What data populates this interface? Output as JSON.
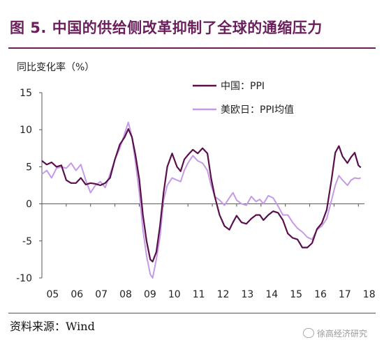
{
  "header": {
    "figure_title": "图 5. 中国的供给侧改革抑制了全球的通缩压力",
    "unit_label": "同比变化率（%）"
  },
  "footer": {
    "source": "资料来源：Wind",
    "watermark": "徐高经济研究"
  },
  "colors": {
    "china": "#5a0f4a",
    "us_eu_jp": "#c49ae6",
    "accent": "#6a1f5c"
  },
  "chart_data": {
    "type": "line",
    "title": "",
    "xlabel": "",
    "ylabel": "同比变化率（%）",
    "ylim": [
      -10,
      15
    ],
    "xlim": [
      2005.0,
      2018.25
    ],
    "yticks": [
      15,
      10,
      5,
      0,
      -5,
      -10
    ],
    "xticks": [
      "05",
      "06",
      "07",
      "08",
      "09",
      "10",
      "11",
      "12",
      "13",
      "14",
      "15",
      "16",
      "17",
      "18"
    ],
    "grid": false,
    "legend_position": "top-right",
    "series": [
      {
        "name": "中国：PPI",
        "points": [
          [
            2005.0,
            5.8
          ],
          [
            2005.2,
            5.3
          ],
          [
            2005.4,
            5.6
          ],
          [
            2005.6,
            5.0
          ],
          [
            2005.8,
            5.2
          ],
          [
            2006.0,
            3.2
          ],
          [
            2006.2,
            2.8
          ],
          [
            2006.4,
            2.8
          ],
          [
            2006.6,
            3.5
          ],
          [
            2006.8,
            2.6
          ],
          [
            2007.0,
            2.8
          ],
          [
            2007.2,
            2.7
          ],
          [
            2007.4,
            2.5
          ],
          [
            2007.6,
            2.8
          ],
          [
            2007.8,
            3.5
          ],
          [
            2008.0,
            6.0
          ],
          [
            2008.2,
            8.0
          ],
          [
            2008.4,
            9.0
          ],
          [
            2008.55,
            10.1
          ],
          [
            2008.7,
            9.0
          ],
          [
            2008.85,
            6.5
          ],
          [
            2009.0,
            3.3
          ],
          [
            2009.15,
            -1.5
          ],
          [
            2009.3,
            -5.0
          ],
          [
            2009.45,
            -7.5
          ],
          [
            2009.55,
            -7.8
          ],
          [
            2009.7,
            -6.5
          ],
          [
            2009.85,
            -3.0
          ],
          [
            2010.0,
            1.5
          ],
          [
            2010.15,
            5.0
          ],
          [
            2010.35,
            6.8
          ],
          [
            2010.55,
            5.0
          ],
          [
            2010.7,
            4.4
          ],
          [
            2010.85,
            6.0
          ],
          [
            2011.0,
            6.6
          ],
          [
            2011.2,
            7.3
          ],
          [
            2011.4,
            6.8
          ],
          [
            2011.6,
            7.5
          ],
          [
            2011.8,
            6.8
          ],
          [
            2011.95,
            3.5
          ],
          [
            2012.1,
            1.0
          ],
          [
            2012.3,
            -1.5
          ],
          [
            2012.5,
            -3.0
          ],
          [
            2012.7,
            -3.5
          ],
          [
            2012.85,
            -2.5
          ],
          [
            2013.0,
            -1.6
          ],
          [
            2013.2,
            -2.5
          ],
          [
            2013.4,
            -2.7
          ],
          [
            2013.6,
            -2.0
          ],
          [
            2013.8,
            -1.5
          ],
          [
            2013.95,
            -1.5
          ],
          [
            2014.1,
            -2.2
          ],
          [
            2014.3,
            -1.5
          ],
          [
            2014.5,
            -1.0
          ],
          [
            2014.7,
            -1.2
          ],
          [
            2014.9,
            -2.2
          ],
          [
            2015.1,
            -4.0
          ],
          [
            2015.3,
            -4.6
          ],
          [
            2015.5,
            -4.8
          ],
          [
            2015.7,
            -5.9
          ],
          [
            2015.9,
            -5.9
          ],
          [
            2016.1,
            -5.3
          ],
          [
            2016.3,
            -3.4
          ],
          [
            2016.5,
            -2.6
          ],
          [
            2016.7,
            -0.8
          ],
          [
            2016.9,
            3.3
          ],
          [
            2017.05,
            6.9
          ],
          [
            2017.2,
            7.8
          ],
          [
            2017.35,
            6.4
          ],
          [
            2017.55,
            5.5
          ],
          [
            2017.7,
            6.3
          ],
          [
            2017.85,
            6.9
          ],
          [
            2018.0,
            5.2
          ],
          [
            2018.1,
            4.9
          ]
        ]
      },
      {
        "name": "美欧日：PPI均值",
        "points": [
          [
            2005.0,
            4.0
          ],
          [
            2005.2,
            4.5
          ],
          [
            2005.4,
            3.5
          ],
          [
            2005.6,
            4.8
          ],
          [
            2005.8,
            5.0
          ],
          [
            2006.0,
            4.8
          ],
          [
            2006.2,
            5.5
          ],
          [
            2006.4,
            4.5
          ],
          [
            2006.6,
            5.3
          ],
          [
            2006.8,
            3.2
          ],
          [
            2007.0,
            1.5
          ],
          [
            2007.2,
            2.5
          ],
          [
            2007.4,
            3.0
          ],
          [
            2007.6,
            2.2
          ],
          [
            2007.8,
            4.0
          ],
          [
            2008.0,
            6.0
          ],
          [
            2008.2,
            7.5
          ],
          [
            2008.4,
            9.5
          ],
          [
            2008.55,
            11.0
          ],
          [
            2008.7,
            9.0
          ],
          [
            2008.85,
            5.5
          ],
          [
            2009.0,
            1.5
          ],
          [
            2009.15,
            -3.5
          ],
          [
            2009.3,
            -7.0
          ],
          [
            2009.45,
            -9.5
          ],
          [
            2009.55,
            -10.0
          ],
          [
            2009.7,
            -7.5
          ],
          [
            2009.85,
            -4.5
          ],
          [
            2010.0,
            0.5
          ],
          [
            2010.15,
            2.5
          ],
          [
            2010.35,
            3.5
          ],
          [
            2010.55,
            3.2
          ],
          [
            2010.7,
            3.0
          ],
          [
            2010.85,
            4.5
          ],
          [
            2011.0,
            5.5
          ],
          [
            2011.2,
            6.5
          ],
          [
            2011.4,
            5.8
          ],
          [
            2011.6,
            5.5
          ],
          [
            2011.8,
            4.5
          ],
          [
            2011.95,
            2.5
          ],
          [
            2012.1,
            1.0
          ],
          [
            2012.3,
            0.5
          ],
          [
            2012.5,
            -0.2
          ],
          [
            2012.7,
            0.8
          ],
          [
            2012.85,
            1.5
          ],
          [
            2013.0,
            0.5
          ],
          [
            2013.2,
            0.0
          ],
          [
            2013.4,
            -0.2
          ],
          [
            2013.6,
            1.0
          ],
          [
            2013.8,
            0.3
          ],
          [
            2013.95,
            0.6
          ],
          [
            2014.1,
            0.0
          ],
          [
            2014.3,
            1.1
          ],
          [
            2014.5,
            0.8
          ],
          [
            2014.7,
            -0.3
          ],
          [
            2014.9,
            -1.5
          ],
          [
            2015.1,
            -1.5
          ],
          [
            2015.3,
            -2.5
          ],
          [
            2015.5,
            -3.3
          ],
          [
            2015.7,
            -3.8
          ],
          [
            2015.9,
            -4.5
          ],
          [
            2016.1,
            -4.8
          ],
          [
            2016.3,
            -3.5
          ],
          [
            2016.5,
            -3.0
          ],
          [
            2016.7,
            -2.0
          ],
          [
            2016.9,
            0.5
          ],
          [
            2017.05,
            2.5
          ],
          [
            2017.2,
            3.8
          ],
          [
            2017.35,
            3.2
          ],
          [
            2017.55,
            2.5
          ],
          [
            2017.7,
            3.2
          ],
          [
            2017.85,
            3.5
          ],
          [
            2018.0,
            3.4
          ],
          [
            2018.1,
            3.5
          ]
        ]
      }
    ]
  }
}
